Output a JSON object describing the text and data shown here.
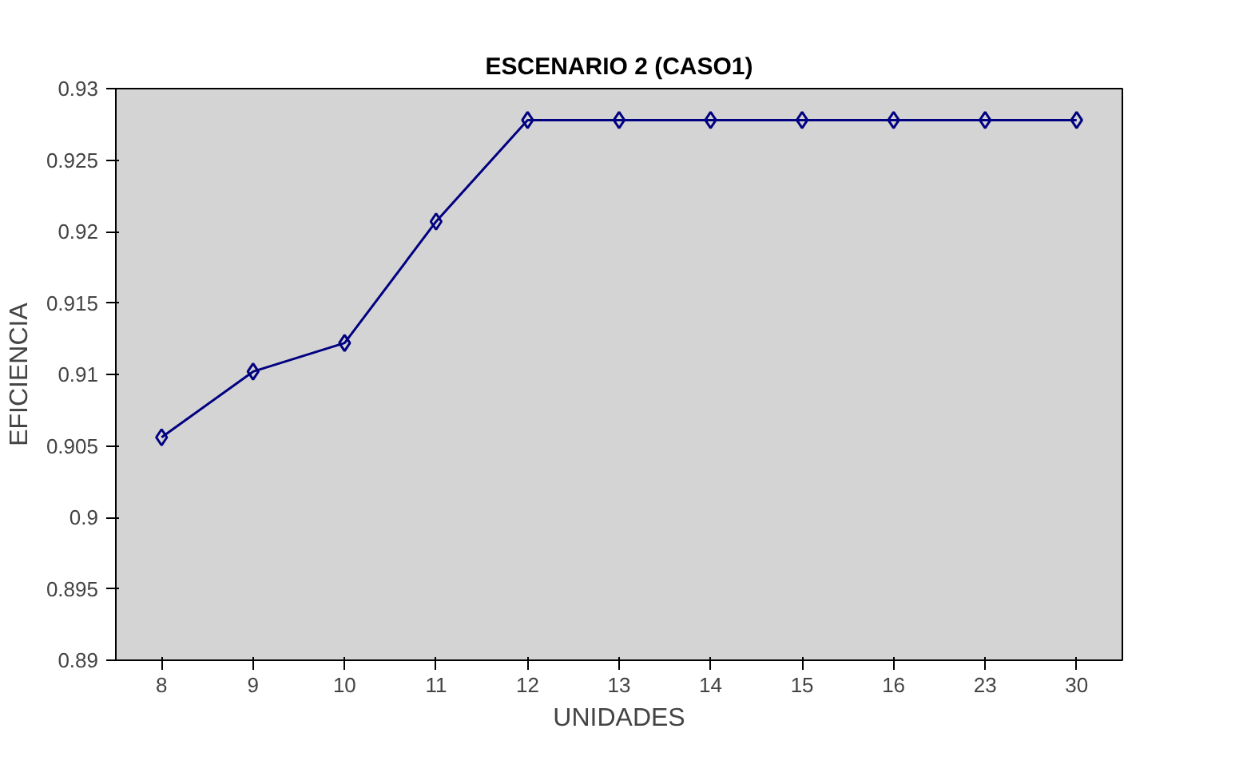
{
  "chart_data": {
    "type": "line",
    "title": "ESCENARIO 2 (CASO1)",
    "xlabel": "UNIDADES",
    "ylabel": "EFICIENCIA",
    "categories": [
      "8",
      "9",
      "10",
      "11",
      "12",
      "13",
      "14",
      "15",
      "16",
      "23",
      "30"
    ],
    "series": [
      {
        "color": "#000080",
        "values": [
          0.9056,
          0.9102,
          0.9122,
          0.9207,
          0.9278,
          0.9278,
          0.9278,
          0.9278,
          0.9278,
          0.9278,
          0.9278
        ]
      }
    ],
    "ylim": [
      0.89,
      0.93
    ],
    "yticks": [
      0.89,
      0.895,
      0.9,
      0.905,
      0.91,
      0.915,
      0.92,
      0.925,
      0.93
    ],
    "marker": "diamond",
    "line_style": "solid",
    "grid": false
  }
}
